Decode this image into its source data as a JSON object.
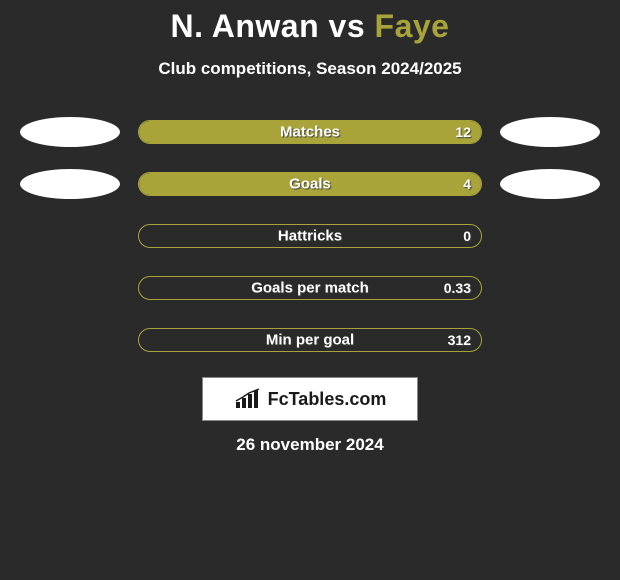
{
  "background_color": "#2a2a2a",
  "title": {
    "left": "N. Anwan",
    "vs": "vs",
    "right": "Faye",
    "left_color": "#ffffff",
    "right_color": "#a9a43a",
    "fontsize": 32
  },
  "subtitle": "Club competitions, Season 2024/2025",
  "bars": {
    "track_width": 344,
    "track_height": 24,
    "border_color": "#a9a43a",
    "fill_color": "#a9a43a",
    "label_color": "#ffffff",
    "label_fontsize": 15,
    "value_fontsize": 14,
    "items": [
      {
        "label": "Matches",
        "value": "12",
        "fill_pct": 100,
        "show_blobs": true
      },
      {
        "label": "Goals",
        "value": "4",
        "fill_pct": 100,
        "show_blobs": true
      },
      {
        "label": "Hattricks",
        "value": "0",
        "fill_pct": 0,
        "show_blobs": false
      },
      {
        "label": "Goals per match",
        "value": "0.33",
        "fill_pct": 0,
        "show_blobs": false
      },
      {
        "label": "Min per goal",
        "value": "312",
        "fill_pct": 0,
        "show_blobs": false
      }
    ]
  },
  "blob": {
    "width": 100,
    "height": 30,
    "color": "#ffffff"
  },
  "brand": {
    "text": "FcTables.com",
    "bg": "#ffffff",
    "text_color": "#1a1a1a",
    "icon_color": "#1a1a1a"
  },
  "date": "26 november 2024"
}
